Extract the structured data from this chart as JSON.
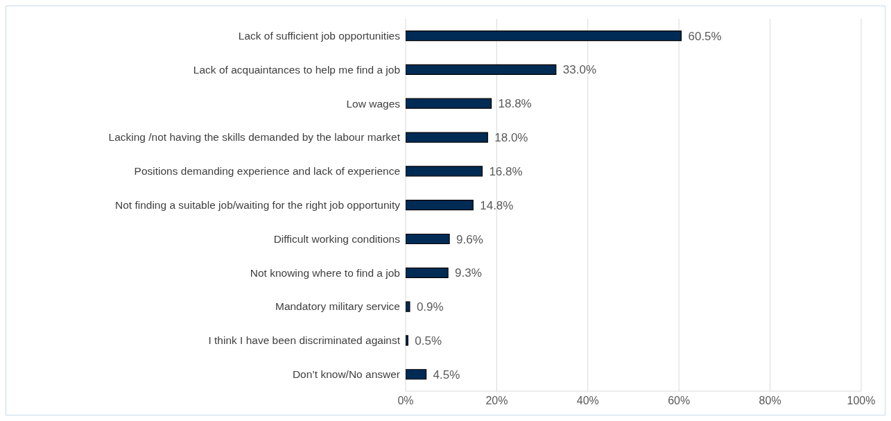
{
  "chart_data": {
    "type": "bar",
    "orientation": "horizontal",
    "categories": [
      "Lack of sufficient job opportunities",
      "Lack of acquaintances to help me find a job",
      "Low wages",
      "Lacking /not having the skills demanded by the labour market",
      "Positions demanding experience and lack of experience",
      "Not finding a suitable job/waiting for the right job opportunity",
      "Difficult working conditions",
      "Not knowing where to find a job",
      "Mandatory military service",
      "I think I have been discriminated against",
      "Don’t know/No answer"
    ],
    "values": [
      60.5,
      33.0,
      18.8,
      18.0,
      16.8,
      14.8,
      9.6,
      9.3,
      0.9,
      0.5,
      4.5
    ],
    "value_labels": [
      "60.5%",
      "33.0%",
      "18.8%",
      "18.0%",
      "16.8%",
      "14.8%",
      "9.6%",
      "9.3%",
      "0.9%",
      "0.5%",
      "4.5%"
    ],
    "color": "#002b55",
    "xlim": [
      0,
      100
    ],
    "xticks": [
      {
        "value": 0,
        "label": "0%"
      },
      {
        "value": 20,
        "label": "20%"
      },
      {
        "value": 40,
        "label": "40%"
      },
      {
        "value": 60,
        "label": "60%"
      },
      {
        "value": 80,
        "label": "80%"
      },
      {
        "value": 100,
        "label": "100%"
      }
    ],
    "grid": "x",
    "legend": false
  }
}
